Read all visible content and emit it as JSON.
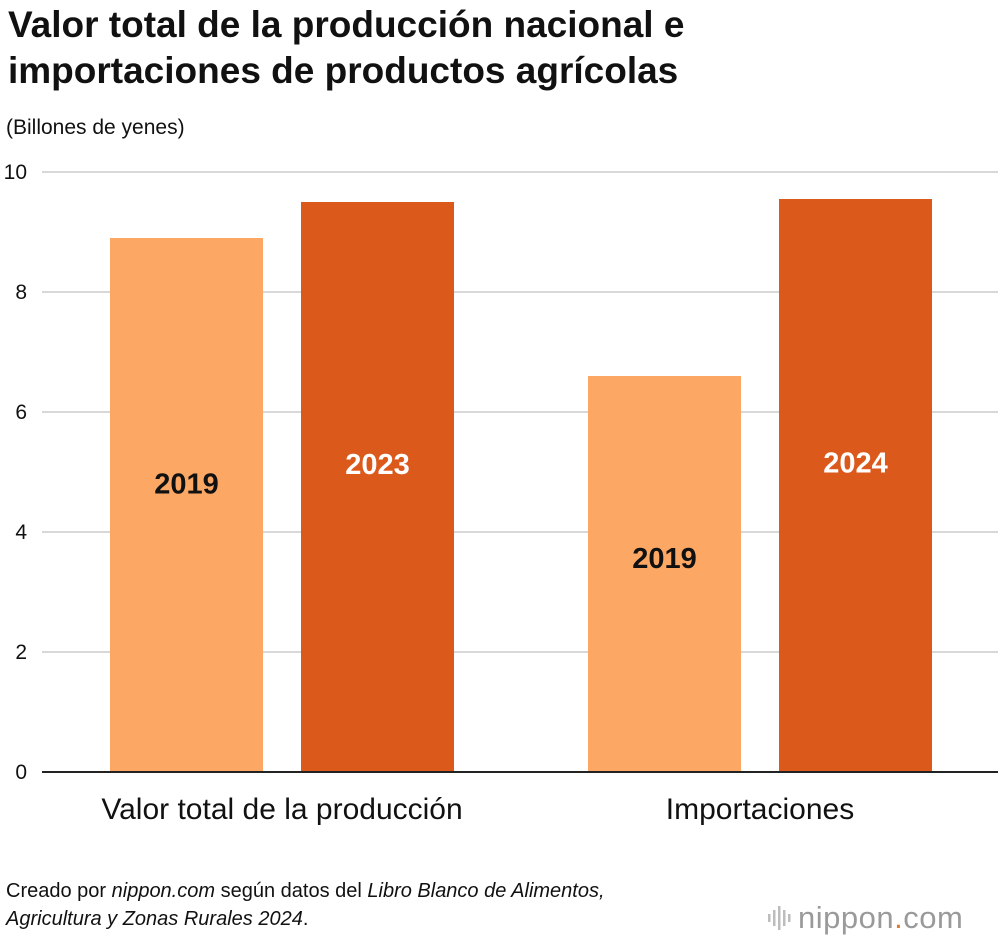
{
  "title_line1": "Valor total de la producción nacional e",
  "title_line2": "importaciones de productos agrícolas",
  "unit_label": "(Billones de yenes)",
  "footer": {
    "p1": "Creado por ",
    "p2": "nippon.com",
    "p3": " según datos del ",
    "p4": "Libro Blanco de Alimentos,",
    "p5": "Agricultura y Zonas Rurales 2024",
    "p6": "."
  },
  "logo": {
    "name": "nippon",
    "dot": ".",
    "suffix": "com",
    "icon": "sound-bars-icon"
  },
  "colors": {
    "light": "#FDA765",
    "dark": "#DC591C",
    "grid": "#CCCCCC",
    "axis": "#222222"
  },
  "chart_data": {
    "type": "bar",
    "categories": [
      "Valor total de la producción",
      "Importaciones"
    ],
    "bars": [
      {
        "category": "Valor total de la producción",
        "label": "2019",
        "value": 8.9,
        "color": "#FDA765",
        "label_color": "#111111"
      },
      {
        "category": "Valor total de la producción",
        "label": "2023",
        "value": 9.5,
        "color": "#DC591C",
        "label_color": "#FFFFFF"
      },
      {
        "category": "Importaciones",
        "label": "2019",
        "value": 6.6,
        "color": "#FDA765",
        "label_color": "#111111"
      },
      {
        "category": "Importaciones",
        "label": "2024",
        "value": 9.55,
        "color": "#DC591C",
        "label_color": "#FFFFFF"
      }
    ],
    "ylabel": "(Billones de yenes)",
    "ylim": [
      0,
      10
    ],
    "yticks": [
      0,
      2,
      4,
      6,
      8,
      10
    ],
    "grid": true,
    "legend": "none"
  }
}
